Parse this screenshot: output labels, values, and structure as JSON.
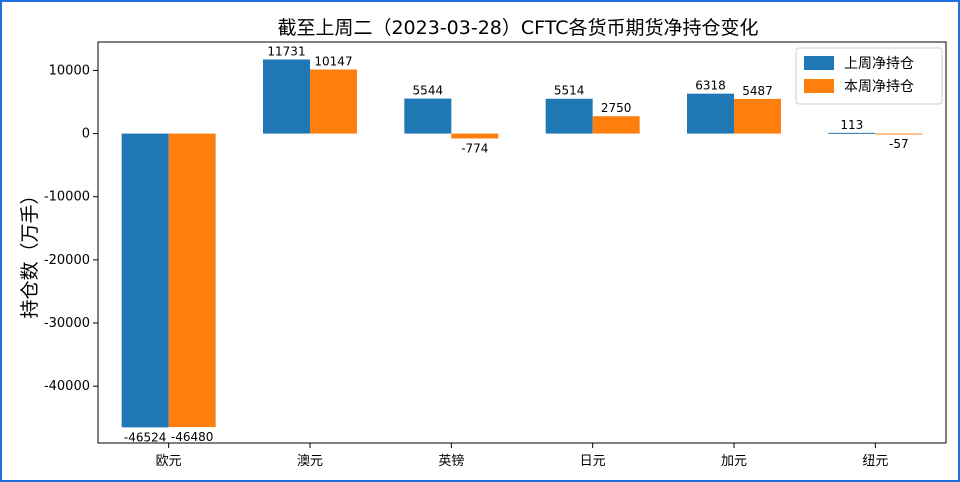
{
  "chart_data": {
    "type": "bar",
    "title": "截至上周二（2023-03-28）CFTC各货币期货净持仓变化",
    "xlabel": "",
    "ylabel": "持仓数（万手）",
    "categories": [
      "欧元",
      "澳元",
      "英镑",
      "日元",
      "加元",
      "纽元"
    ],
    "series": [
      {
        "name": "上周净持仓",
        "color": "#1f77b4",
        "values": [
          -46524,
          11731,
          5544,
          5514,
          6318,
          113
        ]
      },
      {
        "name": "本周净持仓",
        "color": "#ff7f0e",
        "values": [
          -46480,
          10147,
          -774,
          2750,
          5487,
          -57
        ]
      }
    ],
    "yticks": [
      10000,
      0,
      -10000,
      -20000,
      -30000,
      -40000
    ],
    "ylim": [
      -49000,
      14500
    ],
    "grid": false,
    "legend": "top-right",
    "data_labels": true
  }
}
